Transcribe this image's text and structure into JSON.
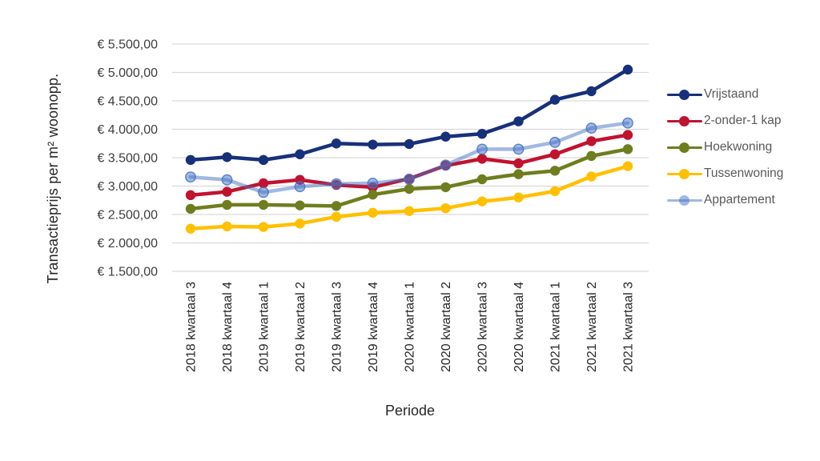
{
  "chart_data": {
    "type": "line",
    "title": "",
    "xlabel": "Periode",
    "ylabel": "Transactieprijs per m² woonopp.",
    "ylim": [
      1500,
      5500
    ],
    "grid": "horizontal",
    "gridline_color": "#d9d9d9",
    "legend_position": "right",
    "y_ticks": [
      1500,
      2000,
      2500,
      3000,
      3500,
      4000,
      4500,
      5000,
      5500
    ],
    "y_tick_labels": [
      "€ 1.500,00",
      "€ 2.000,00",
      "€ 2.500,00",
      "€ 3.000,00",
      "€ 3.500,00",
      "€ 4.000,00",
      "€ 4.500,00",
      "€ 5.000,00",
      "€ 5.500,00"
    ],
    "categories": [
      "2018 kwartaal 3",
      "2018 kwartaal 4",
      "2019 kwartaal 1",
      "2019 kwartaal 2",
      "2019 kwartaal 3",
      "2019 kwartaal 4",
      "2020 kwartaal 1",
      "2020 kwartaal 2",
      "2020 kwartaal 3",
      "2020 kwartaal 4",
      "2021 kwartaal 1",
      "2021 kwartaal 2",
      "2021 kwartaal 3"
    ],
    "series": [
      {
        "name": "Vrijstaand",
        "color": "#17307a",
        "opacity": 1,
        "values": [
          3460,
          3510,
          3460,
          3560,
          3750,
          3730,
          3740,
          3870,
          3920,
          4140,
          4520,
          4670,
          5050
        ]
      },
      {
        "name": "2-onder-1 kap",
        "color": "#c1122f",
        "opacity": 1,
        "values": [
          2840,
          2900,
          3050,
          3110,
          3020,
          2980,
          3130,
          3360,
          3480,
          3400,
          3560,
          3790,
          3900
        ]
      },
      {
        "name": "Hoekwoning",
        "color": "#6f7d1e",
        "opacity": 1,
        "values": [
          2600,
          2670,
          2670,
          2660,
          2650,
          2850,
          2950,
          2980,
          3120,
          3210,
          3270,
          3530,
          3650
        ]
      },
      {
        "name": "Tussenwoning",
        "color": "#ffc000",
        "opacity": 1,
        "values": [
          2250,
          2290,
          2280,
          2340,
          2460,
          2530,
          2560,
          2610,
          2730,
          2800,
          2910,
          3170,
          3350
        ]
      },
      {
        "name": "Appartement",
        "color": "#4472c4",
        "opacity": 0.5,
        "values": [
          3160,
          3110,
          2890,
          2990,
          3040,
          3050,
          3120,
          3370,
          3650,
          3650,
          3770,
          4020,
          4110
        ]
      }
    ]
  }
}
